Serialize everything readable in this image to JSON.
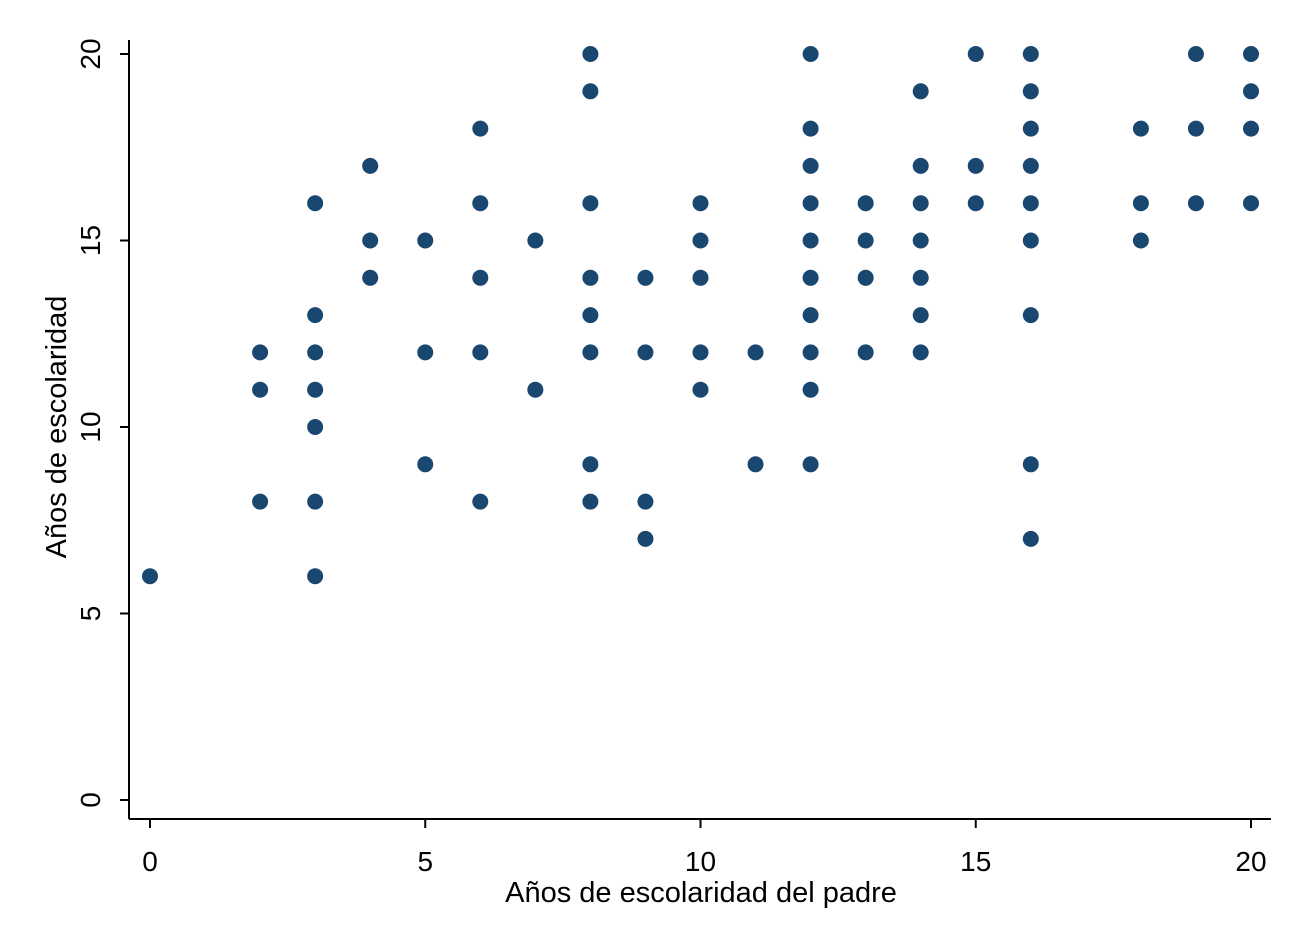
{
  "chart_data": {
    "type": "scatter",
    "title": "",
    "xlabel": "Años de escolaridad del padre",
    "ylabel": "Años de escolaridad",
    "xlim": [
      0,
      20
    ],
    "ylim": [
      0,
      20
    ],
    "xticks": [
      0,
      5,
      10,
      15,
      20
    ],
    "yticks": [
      0,
      5,
      10,
      15,
      20
    ],
    "xtick_labels": [
      "0",
      "5",
      "10",
      "15",
      "20"
    ],
    "ytick_labels": [
      "0",
      "5",
      "10",
      "15",
      "20"
    ],
    "grid": false,
    "marker_color": "#1a476f",
    "points": [
      [
        0,
        6
      ],
      [
        2,
        12
      ],
      [
        2,
        11
      ],
      [
        2,
        8
      ],
      [
        3,
        16
      ],
      [
        3,
        13
      ],
      [
        3,
        12
      ],
      [
        3,
        11
      ],
      [
        3,
        10
      ],
      [
        3,
        8
      ],
      [
        3,
        6
      ],
      [
        4,
        17
      ],
      [
        4,
        15
      ],
      [
        4,
        14
      ],
      [
        5,
        15
      ],
      [
        5,
        12
      ],
      [
        5,
        9
      ],
      [
        6,
        18
      ],
      [
        6,
        16
      ],
      [
        6,
        14
      ],
      [
        6,
        12
      ],
      [
        6,
        8
      ],
      [
        7,
        15
      ],
      [
        7,
        11
      ],
      [
        8,
        20
      ],
      [
        8,
        19
      ],
      [
        8,
        16
      ],
      [
        8,
        14
      ],
      [
        8,
        13
      ],
      [
        8,
        12
      ],
      [
        8,
        9
      ],
      [
        8,
        8
      ],
      [
        9,
        14
      ],
      [
        9,
        12
      ],
      [
        9,
        8
      ],
      [
        9,
        7
      ],
      [
        10,
        16
      ],
      [
        10,
        15
      ],
      [
        10,
        14
      ],
      [
        10,
        12
      ],
      [
        10,
        11
      ],
      [
        11,
        12
      ],
      [
        11,
        9
      ],
      [
        12,
        20
      ],
      [
        12,
        18
      ],
      [
        12,
        17
      ],
      [
        12,
        16
      ],
      [
        12,
        15
      ],
      [
        12,
        14
      ],
      [
        12,
        13
      ],
      [
        12,
        12
      ],
      [
        12,
        11
      ],
      [
        12,
        9
      ],
      [
        13,
        16
      ],
      [
        13,
        15
      ],
      [
        13,
        14
      ],
      [
        13,
        12
      ],
      [
        14,
        19
      ],
      [
        14,
        17
      ],
      [
        14,
        16
      ],
      [
        14,
        15
      ],
      [
        14,
        14
      ],
      [
        14,
        13
      ],
      [
        14,
        12
      ],
      [
        15,
        20
      ],
      [
        15,
        17
      ],
      [
        15,
        16
      ],
      [
        16,
        20
      ],
      [
        16,
        19
      ],
      [
        16,
        18
      ],
      [
        16,
        17
      ],
      [
        16,
        16
      ],
      [
        16,
        15
      ],
      [
        16,
        13
      ],
      [
        16,
        9
      ],
      [
        16,
        7
      ],
      [
        18,
        18
      ],
      [
        18,
        16
      ],
      [
        18,
        15
      ],
      [
        19,
        20
      ],
      [
        19,
        18
      ],
      [
        19,
        16
      ],
      [
        20,
        20
      ],
      [
        20,
        19
      ],
      [
        20,
        18
      ],
      [
        20,
        16
      ]
    ]
  }
}
